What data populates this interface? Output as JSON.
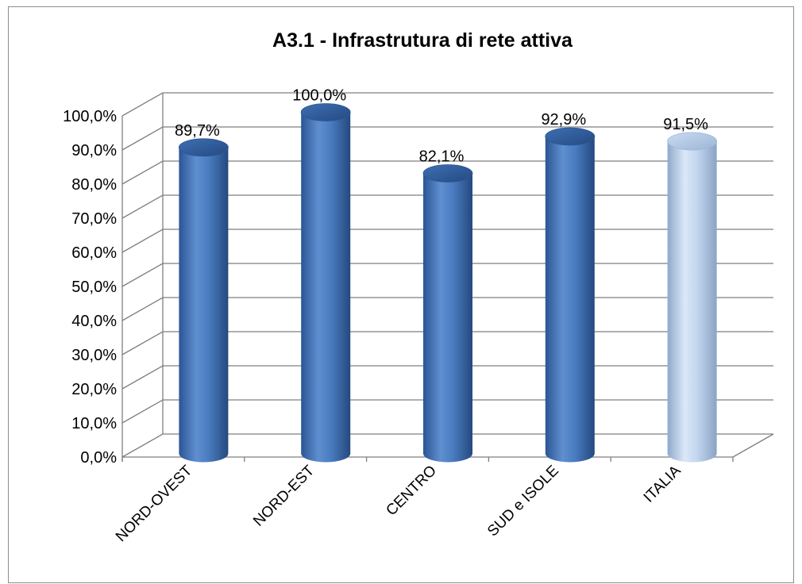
{
  "chart_data": {
    "type": "bar",
    "title": "A3.1 - Infrastrutura di rete attiva",
    "xlabel": "",
    "ylabel": "",
    "categories": [
      "NORD-OVEST",
      "NORD-EST",
      "CENTRO",
      "SUD e ISOLE",
      "ITALIA"
    ],
    "values": [
      89.7,
      100.0,
      82.1,
      92.9,
      91.5
    ],
    "value_labels": [
      "89,7%",
      "100,0%",
      "82,1%",
      "92,9%",
      "91,5%"
    ],
    "y_ticks": [
      "0,0%",
      "10,0%",
      "20,0%",
      "30,0%",
      "40,0%",
      "50,0%",
      "60,0%",
      "70,0%",
      "80,0%",
      "90,0%",
      "100,0%"
    ],
    "ylim": [
      0,
      100
    ],
    "grid": true,
    "legend": "none",
    "style": "3d-cylinder",
    "colors": {
      "bar": "#4a7cc0",
      "bar_highlight": "#b8d0ec",
      "gridline": "#7f7f7f"
    },
    "highlight_category": "ITALIA"
  }
}
